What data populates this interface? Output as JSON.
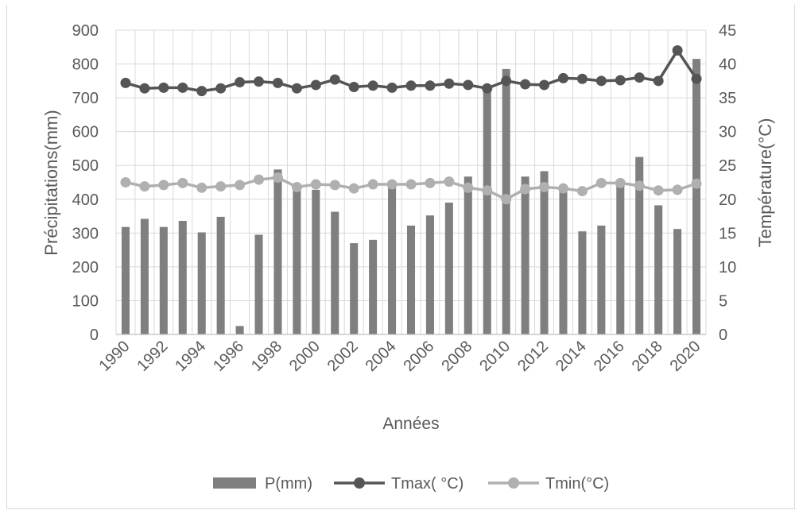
{
  "chart_data": {
    "type": "bar",
    "xlabel": "Années",
    "ylabel_left": "Précipitations(mm)",
    "ylabel_right": "Température(°C)",
    "ylim_left": [
      0,
      900
    ],
    "yticks_left": [
      0,
      100,
      200,
      300,
      400,
      500,
      600,
      700,
      800,
      900
    ],
    "ylim_right": [
      0,
      45
    ],
    "yticks_right": [
      0,
      5,
      10,
      15,
      20,
      25,
      30,
      35,
      40,
      45
    ],
    "grid": true,
    "legend_position": "bottom",
    "years": [
      1990,
      1991,
      1992,
      1993,
      1994,
      1995,
      1996,
      1997,
      1998,
      1999,
      2000,
      2001,
      2002,
      2003,
      2004,
      2005,
      2006,
      2007,
      2008,
      2009,
      2010,
      2011,
      2012,
      2013,
      2014,
      2015,
      2016,
      2017,
      2018,
      2019,
      2020
    ],
    "x_tick_labels": [
      "1990",
      "1992",
      "1994",
      "1996",
      "1998",
      "2000",
      "2002",
      "2004",
      "2006",
      "2008",
      "2010",
      "2012",
      "2014",
      "2016",
      "2018",
      "2020"
    ],
    "series": [
      {
        "name": "P(mm)",
        "type": "bar",
        "axis": "left",
        "color": "#7f7f7f",
        "values": [
          318,
          342,
          318,
          336,
          302,
          348,
          25,
          295,
          488,
          445,
          428,
          363,
          270,
          280,
          440,
          322,
          352,
          390,
          467,
          735,
          785,
          467,
          483,
          440,
          305,
          322,
          445,
          525,
          382,
          312,
          815
        ]
      },
      {
        "name": "Tmax( °C)",
        "type": "line",
        "axis": "right",
        "color": "#555555",
        "values": [
          37.2,
          36.4,
          36.5,
          36.5,
          36.0,
          36.4,
          37.3,
          37.4,
          37.2,
          36.4,
          36.9,
          37.7,
          36.6,
          36.8,
          36.5,
          36.8,
          36.8,
          37.1,
          36.9,
          36.4,
          37.5,
          37.0,
          36.9,
          37.9,
          37.8,
          37.5,
          37.6,
          38.0,
          37.5,
          42.0,
          37.8
        ]
      },
      {
        "name": "Tmin(°C)",
        "type": "line",
        "axis": "right",
        "color": "#b0b0b0",
        "values": [
          22.5,
          21.9,
          22.1,
          22.4,
          21.7,
          21.9,
          22.1,
          22.9,
          23.2,
          21.8,
          22.2,
          22.1,
          21.6,
          22.2,
          22.2,
          22.2,
          22.4,
          22.6,
          21.7,
          21.3,
          20.0,
          21.5,
          21.8,
          21.6,
          21.2,
          22.4,
          22.4,
          22.0,
          21.3,
          21.4,
          22.3
        ]
      }
    ]
  }
}
